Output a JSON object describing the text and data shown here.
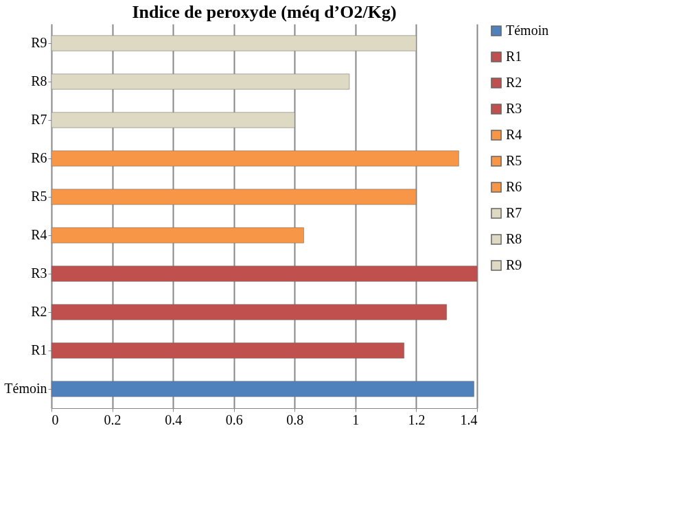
{
  "chart_data": {
    "type": "bar",
    "orientation": "horizontal",
    "title": "Indice de peroxyde (méq d’O2/Kg)",
    "categories": [
      "R9",
      "R8",
      "R7",
      "R6",
      "R5",
      "R4",
      "R3",
      "R2",
      "R1",
      "Témoin"
    ],
    "series": [
      {
        "name": "Témoin",
        "color": "#4f81bd",
        "values": [
          null,
          null,
          null,
          null,
          null,
          null,
          null,
          null,
          null,
          1.39
        ]
      },
      {
        "name": "R1",
        "color": "#c0504d",
        "values": [
          null,
          null,
          null,
          null,
          null,
          null,
          null,
          null,
          1.16,
          null
        ]
      },
      {
        "name": "R2",
        "color": "#c0504d",
        "values": [
          null,
          null,
          null,
          null,
          null,
          null,
          null,
          1.3,
          null,
          null
        ]
      },
      {
        "name": "R3",
        "color": "#c0504d",
        "values": [
          null,
          null,
          null,
          null,
          null,
          null,
          1.4,
          null,
          null,
          null
        ]
      },
      {
        "name": "R4",
        "color": "#f79646",
        "values": [
          null,
          null,
          null,
          null,
          null,
          0.83,
          null,
          null,
          null,
          null
        ]
      },
      {
        "name": "R5",
        "color": "#f79646",
        "values": [
          null,
          null,
          null,
          null,
          1.2,
          null,
          null,
          null,
          null,
          null
        ]
      },
      {
        "name": "R6",
        "color": "#f79646",
        "values": [
          null,
          null,
          null,
          1.34,
          null,
          null,
          null,
          null,
          null,
          null
        ]
      },
      {
        "name": "R7",
        "color": "#ddd9c3",
        "values": [
          null,
          null,
          0.8,
          null,
          null,
          null,
          null,
          null,
          null,
          null
        ]
      },
      {
        "name": "R8",
        "color": "#ddd9c3",
        "values": [
          null,
          0.98,
          null,
          null,
          null,
          null,
          null,
          null,
          null,
          null
        ]
      },
      {
        "name": "R9",
        "color": "#ddd9c3",
        "values": [
          1.2,
          null,
          null,
          null,
          null,
          null,
          null,
          null,
          null,
          null
        ]
      }
    ],
    "xlim": [
      0,
      1.4
    ],
    "xticks": [
      0,
      0.2,
      0.4,
      0.6,
      0.8,
      1,
      1.2,
      1.4
    ],
    "grid": "x",
    "legend": "right"
  }
}
